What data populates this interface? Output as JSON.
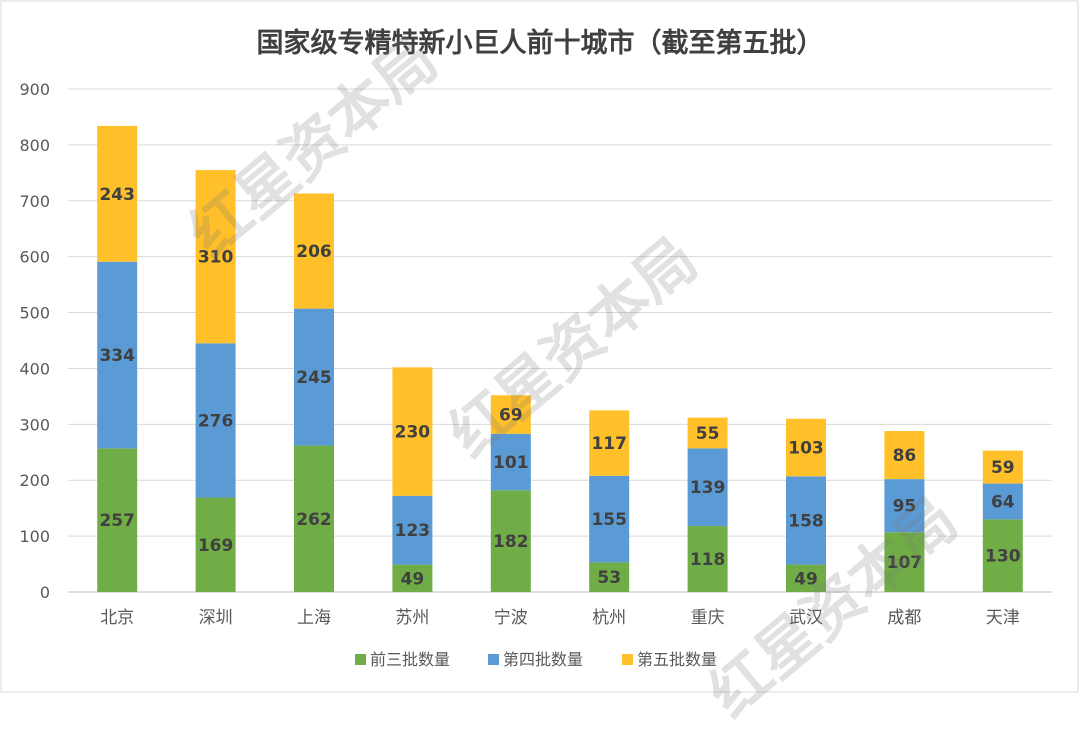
{
  "chart_data": {
    "type": "bar",
    "stacked": true,
    "title": "国家级专精特新小巨人前十城市（截至第五批）",
    "xlabel": "",
    "ylabel": "",
    "ylim": [
      0,
      900
    ],
    "yticks": [
      0,
      100,
      200,
      300,
      400,
      500,
      600,
      700,
      800,
      900
    ],
    "grid": true,
    "legend_position": "bottom",
    "categories": [
      "北京",
      "深圳",
      "上海",
      "苏州",
      "宁波",
      "杭州",
      "重庆",
      "武汉",
      "成都",
      "天津"
    ],
    "series": [
      {
        "name": "前三批数量",
        "color": "#70ad47",
        "values": [
          257,
          169,
          262,
          49,
          182,
          53,
          118,
          49,
          107,
          130
        ]
      },
      {
        "name": "第四批数量",
        "color": "#5b9bd5",
        "values": [
          334,
          276,
          245,
          123,
          101,
          155,
          139,
          158,
          95,
          64
        ]
      },
      {
        "name": "第五批数量",
        "color": "#ffc02a",
        "values": [
          243,
          310,
          206,
          230,
          69,
          117,
          55,
          103,
          86,
          59
        ]
      }
    ]
  },
  "watermark": "红星资本局"
}
